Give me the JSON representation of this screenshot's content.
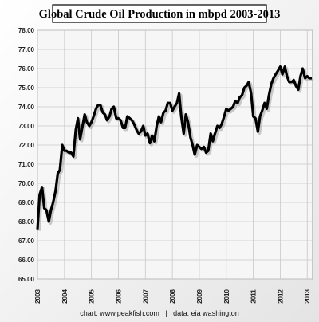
{
  "chart_data": {
    "type": "line",
    "title": "Global Crude Oil Production in mbpd 2003-2013",
    "footer": "chart: www.peakfish.com   |   data: eia washington",
    "x": [
      2003,
      2003.08,
      2003.17,
      2003.25,
      2003.33,
      2003.42,
      2003.5,
      2003.58,
      2003.67,
      2003.75,
      2003.83,
      2003.92,
      2004,
      2004.08,
      2004.17,
      2004.25,
      2004.33,
      2004.42,
      2004.5,
      2004.58,
      2004.67,
      2004.75,
      2004.83,
      2004.92,
      2005,
      2005.08,
      2005.17,
      2005.25,
      2005.33,
      2005.42,
      2005.5,
      2005.58,
      2005.67,
      2005.75,
      2005.83,
      2005.92,
      2006,
      2006.08,
      2006.17,
      2006.25,
      2006.33,
      2006.42,
      2006.5,
      2006.58,
      2006.67,
      2006.75,
      2006.83,
      2006.92,
      2007,
      2007.08,
      2007.17,
      2007.25,
      2007.33,
      2007.42,
      2007.5,
      2007.58,
      2007.67,
      2007.75,
      2007.83,
      2007.92,
      2008,
      2008.08,
      2008.17,
      2008.25,
      2008.33,
      2008.42,
      2008.5,
      2008.58,
      2008.67,
      2008.75,
      2008.83,
      2008.92,
      2009,
      2009.08,
      2009.17,
      2009.25,
      2009.33,
      2009.42,
      2009.5,
      2009.58,
      2009.67,
      2009.75,
      2009.83,
      2009.92,
      2010,
      2010.08,
      2010.17,
      2010.25,
      2010.33,
      2010.42,
      2010.5,
      2010.58,
      2010.67,
      2010.75,
      2010.83,
      2010.92,
      2011,
      2011.08,
      2011.17,
      2011.25,
      2011.33,
      2011.42,
      2011.5,
      2011.58,
      2011.67,
      2011.75,
      2011.83,
      2011.92,
      2012,
      2012.08,
      2012.17,
      2012.25,
      2012.33,
      2012.42,
      2012.5,
      2012.58,
      2012.67,
      2012.75,
      2012.83,
      2012.92,
      2013,
      2013.08,
      2013.17
    ],
    "series": [
      {
        "name": "Global Crude Oil Production",
        "color": "#000000",
        "values": [
          67.6,
          69.4,
          69.8,
          68.7,
          68.6,
          68.0,
          68.6,
          69.0,
          69.6,
          70.5,
          70.7,
          72.0,
          71.7,
          71.7,
          71.6,
          71.6,
          71.4,
          72.8,
          73.4,
          72.3,
          73.0,
          73.6,
          73.2,
          73.0,
          73.2,
          73.5,
          73.9,
          74.1,
          74.1,
          73.7,
          73.6,
          73.3,
          73.5,
          73.9,
          74.0,
          73.4,
          73.4,
          73.3,
          72.9,
          72.9,
          73.5,
          73.4,
          73.3,
          73.1,
          72.8,
          72.6,
          72.7,
          73.0,
          72.5,
          72.6,
          72.1,
          72.5,
          72.2,
          73.0,
          73.5,
          73.2,
          73.7,
          73.8,
          74.2,
          74.2,
          73.8,
          74.0,
          74.2,
          74.7,
          73.5,
          72.6,
          73.6,
          73.2,
          72.4,
          72.0,
          71.5,
          72.0,
          71.9,
          71.8,
          71.9,
          71.6,
          71.7,
          72.6,
          72.2,
          72.6,
          73.0,
          72.9,
          73.1,
          73.5,
          73.9,
          73.8,
          73.9,
          74.0,
          74.3,
          74.2,
          74.5,
          74.6,
          75.0,
          75.1,
          75.3,
          74.7,
          73.5,
          73.4,
          72.7,
          73.5,
          73.8,
          74.2,
          73.9,
          74.6,
          75.2,
          75.5,
          75.7,
          75.9,
          76.1,
          75.7,
          76.1,
          75.6,
          75.3,
          75.3,
          75.4,
          75.1,
          74.9,
          75.6,
          76.0,
          75.5,
          75.6,
          75.5,
          75.5
        ]
      }
    ],
    "xlim": [
      2003,
      2013.2
    ],
    "xticks": [
      2003,
      2004,
      2005,
      2006,
      2007,
      2008,
      2009,
      2010,
      2011,
      2012,
      2013
    ],
    "ylim": [
      65,
      78
    ],
    "yticks": [
      {
        "value": 65,
        "label": "65.00"
      },
      {
        "value": 66,
        "label": "66.00"
      },
      {
        "value": 67,
        "label": "67.00"
      },
      {
        "value": 68,
        "label": "68.00"
      },
      {
        "value": 69,
        "label": "69.00"
      },
      {
        "value": 70,
        "label": "70.00"
      },
      {
        "value": 71,
        "label": "71.00"
      },
      {
        "value": 72,
        "label": "72.00"
      },
      {
        "value": 73,
        "label": "73.00"
      },
      {
        "value": 74,
        "label": "74.00"
      },
      {
        "value": 75,
        "label": "75.00"
      },
      {
        "value": 76,
        "label": "76.00"
      },
      {
        "value": 77,
        "label": "77.00"
      },
      {
        "value": 78,
        "label": "78.00"
      }
    ],
    "grid": true
  }
}
